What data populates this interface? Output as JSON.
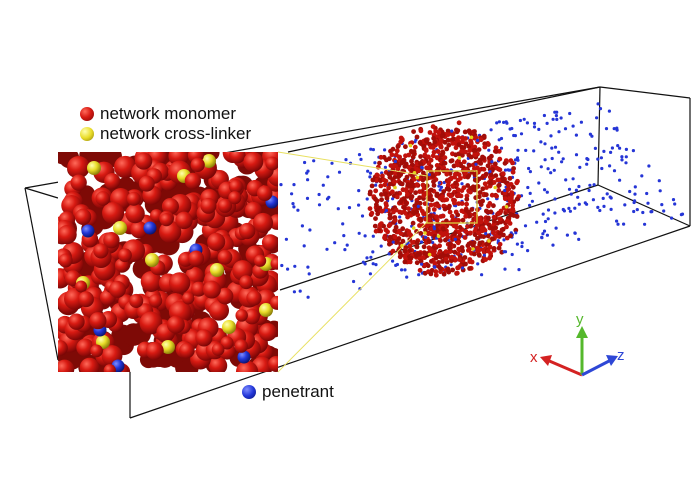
{
  "legend": {
    "items": [
      {
        "key": "monomer",
        "label": "network monomer",
        "color": "#c0160f"
      },
      {
        "key": "crosslinker",
        "label": "network cross-linker",
        "color": "#e3d21a"
      },
      {
        "key": "penetrant",
        "label": "penetrant",
        "color": "#1c2fd0"
      }
    ]
  },
  "axes": {
    "x": {
      "label": "x",
      "color": "#d42222"
    },
    "y": {
      "label": "y",
      "color": "#55b82c"
    },
    "z": {
      "label": "z",
      "color": "#2e47d6"
    }
  },
  "colors": {
    "box_edge": "#111111",
    "zoom_lines": "#e8e060",
    "zoom_frame": "#d9c13a"
  }
}
